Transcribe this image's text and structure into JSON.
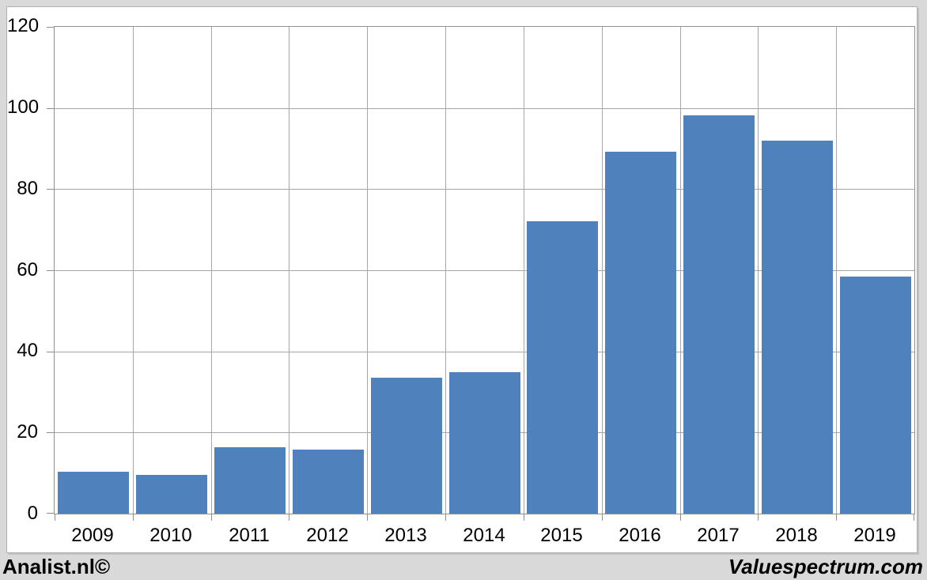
{
  "chart_data": {
    "type": "bar",
    "categories": [
      "2009",
      "2010",
      "2011",
      "2012",
      "2013",
      "2014",
      "2015",
      "2016",
      "2017",
      "2018",
      "2019"
    ],
    "values": [
      10.4,
      9.6,
      16.3,
      15.7,
      33.5,
      34.8,
      72,
      89.3,
      98.1,
      92,
      58.5
    ],
    "title": "",
    "xlabel": "",
    "ylabel": "",
    "ylim": [
      0,
      120
    ],
    "yticks": [
      0,
      20,
      40,
      60,
      80,
      100,
      120
    ],
    "grid": true,
    "legend": false,
    "colors": {
      "bar": "#4f81bd",
      "gridline": "#a6a6a6",
      "plot_border": "#909090",
      "plot_bg": "#ffffff",
      "page_bg": "#d9d9d9",
      "tick_label": "#000000"
    }
  },
  "footer": {
    "left": "Analist.nl©",
    "right": "Valuespectrum.com"
  }
}
